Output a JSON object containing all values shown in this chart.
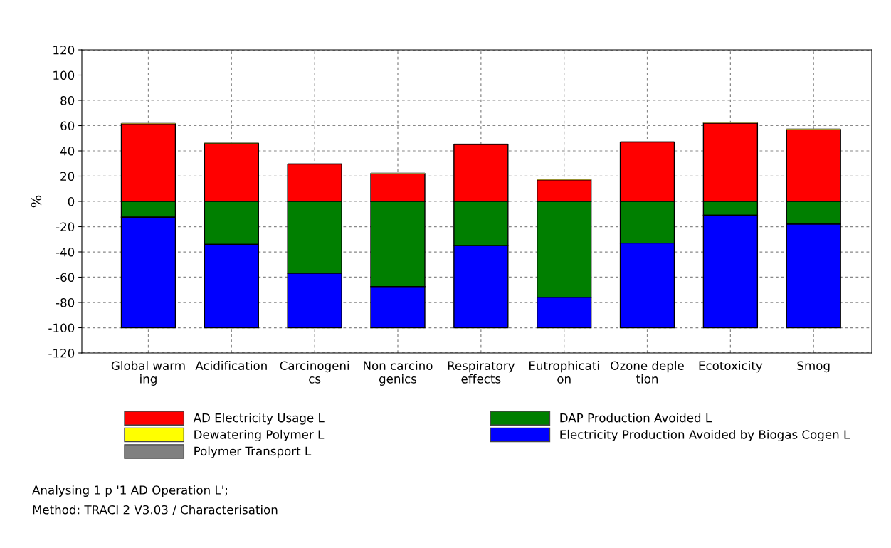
{
  "chart_data": {
    "type": "bar",
    "stacked": true,
    "ylabel": "%",
    "categories": [
      "Global warm\ning",
      "Acidification",
      "Carcinogeni\ncs",
      "Non carcino\ngenics",
      "Respiratory\neffects",
      "Eutrophicati\non",
      "Ozone deple\ntion",
      "Ecotoxicity",
      "Smog"
    ],
    "series": [
      {
        "name": "AD Electricity Usage L",
        "color": "#ff0000",
        "values": [
          61.5,
          46,
          29.5,
          22,
          45,
          17,
          47,
          62,
          57
        ]
      },
      {
        "name": "Dewatering Polymer L",
        "color": "#ffff00",
        "values": [
          0.3,
          0.3,
          0.3,
          0.3,
          0.3,
          0.3,
          0.3,
          0.3,
          0.3
        ]
      },
      {
        "name": "Polymer Transport L",
        "color": "#808080",
        "values": [
          0.5,
          0.5,
          0.5,
          0.5,
          0.5,
          0.5,
          0.5,
          0.5,
          0.5
        ]
      },
      {
        "name": "DAP Production Avoided L",
        "color": "#007f00",
        "values": [
          -12.5,
          -34,
          -57,
          -67.5,
          -35,
          -76,
          -33,
          -11,
          -18
        ]
      },
      {
        "name": "Electricity Production Avoided by Biogas Cogen L",
        "color": "#0000ff",
        "values": [
          -87.5,
          -66,
          -43,
          -32.5,
          -65,
          -24,
          -67,
          -89,
          -82
        ]
      }
    ],
    "ylim": [
      -120,
      120
    ],
    "yticks": [
      -120,
      -100,
      -80,
      -60,
      -40,
      -20,
      0,
      20,
      40,
      60,
      80,
      100,
      120
    ],
    "grid": true,
    "legend": "bottom",
    "annotations": [
      "Analysing 1 p '1 AD Operation L';",
      "Method: TRACI 2 V3.03 / Characterisation"
    ]
  }
}
